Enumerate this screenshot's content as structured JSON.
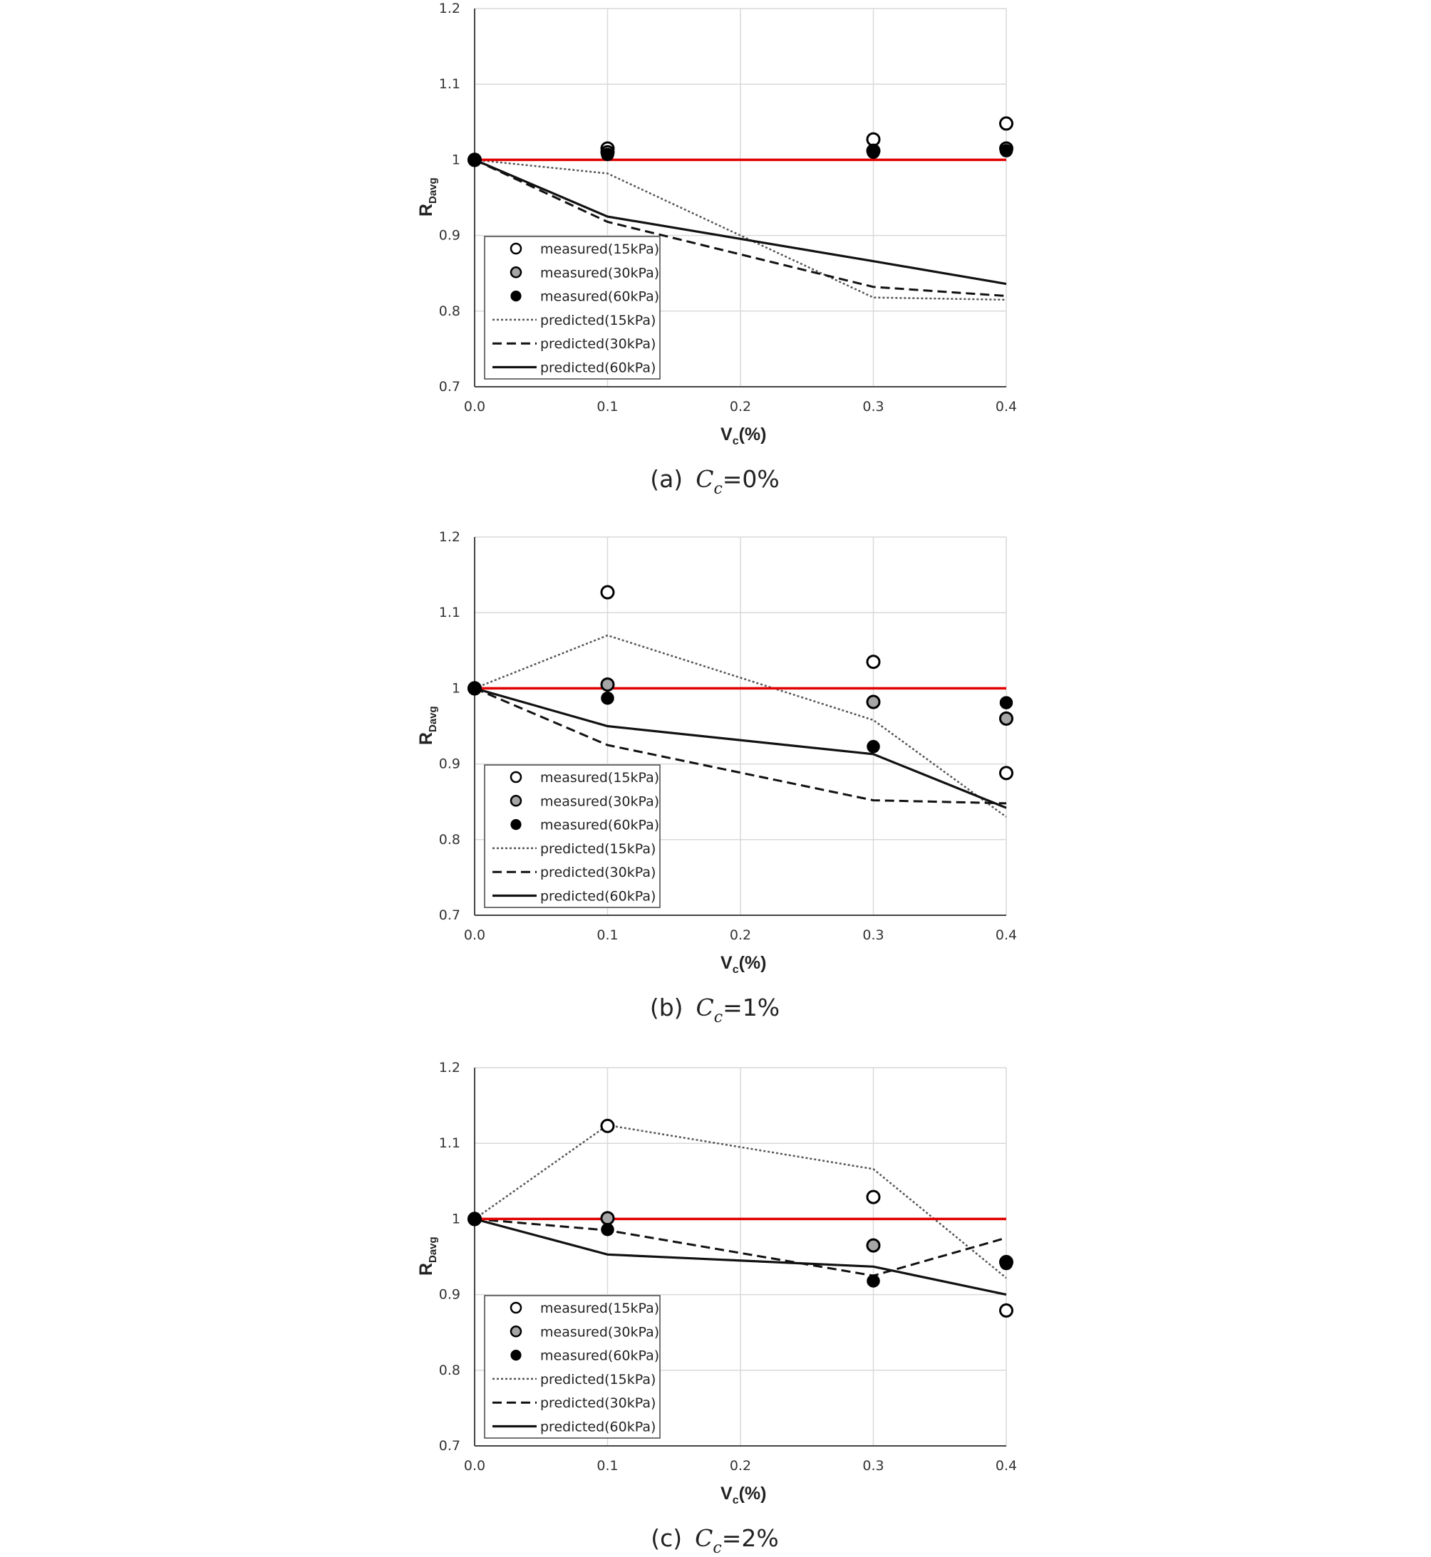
{
  "colors": {
    "reference_line": "#e00000",
    "measured_15_fill": "#ffffff",
    "measured_30_fill": "#a6a6a6",
    "measured_60_fill": "#000000",
    "predicted_15": "#555555",
    "predicted_30": "#111111",
    "predicted_60": "#111111",
    "grid": "#d9d9d9"
  },
  "legend_labels": [
    "measured(15kPa)",
    "measured(30kPa)",
    "measured(60kPa)",
    "predicted(15kPa)",
    "predicted(30kPa)",
    "predicted(60kPa)"
  ],
  "chart_data": [
    {
      "type": "line",
      "caption_prefix": "(a)",
      "caption_var": "C",
      "caption_sub": "c",
      "caption_suffix": "=0%",
      "xlabel_main": "V",
      "xlabel_sub": "c",
      "xlabel_suffix": "(%)",
      "ylabel_main": "R",
      "ylabel_sub": "Davg",
      "xlim": [
        0,
        0.4
      ],
      "ylim": [
        0.7,
        1.2
      ],
      "xticks": [
        "0.0",
        "0.1",
        "0.2",
        "0.3",
        "0.4"
      ],
      "yticks": [
        "0.7",
        "0.8",
        "0.9",
        "1",
        "1.1",
        "1.2"
      ],
      "grid": true,
      "legend_position": "bottom-left",
      "reference_value": 1,
      "x": [
        0,
        0.1,
        0.3,
        0.4
      ],
      "series": [
        {
          "name": "measured(15kPa)",
          "kind": "measured",
          "values": [
            1.0,
            1.015,
            1.027,
            1.048
          ]
        },
        {
          "name": "measured(30kPa)",
          "kind": "measured",
          "values": [
            1.0,
            1.01,
            1.012,
            1.015
          ]
        },
        {
          "name": "measured(60kPa)",
          "kind": "measured",
          "values": [
            1.0,
            1.007,
            1.01,
            1.012
          ]
        },
        {
          "name": "predicted(15kPa)",
          "kind": "predicted",
          "values": [
            1.0,
            0.982,
            0.818,
            0.815
          ]
        },
        {
          "name": "predicted(30kPa)",
          "kind": "predicted",
          "values": [
            1.0,
            0.918,
            0.832,
            0.82
          ]
        },
        {
          "name": "predicted(60kPa)",
          "kind": "predicted",
          "values": [
            1.0,
            0.925,
            0.866,
            0.836
          ]
        }
      ]
    },
    {
      "type": "line",
      "caption_prefix": "(b)",
      "caption_var": "C",
      "caption_sub": "c",
      "caption_suffix": "=1%",
      "xlabel_main": "V",
      "xlabel_sub": "c",
      "xlabel_suffix": "(%)",
      "ylabel_main": "R",
      "ylabel_sub": "Davg",
      "xlim": [
        0,
        0.4
      ],
      "ylim": [
        0.7,
        1.2
      ],
      "xticks": [
        "0.0",
        "0.1",
        "0.2",
        "0.3",
        "0.4"
      ],
      "yticks": [
        "0.7",
        "0.8",
        "0.9",
        "1",
        "1.1",
        "1.2"
      ],
      "grid": true,
      "legend_position": "bottom-left",
      "reference_value": 1,
      "x": [
        0,
        0.1,
        0.3,
        0.4
      ],
      "series": [
        {
          "name": "measured(15kPa)",
          "kind": "measured",
          "values": [
            1.0,
            1.127,
            1.035,
            0.888
          ]
        },
        {
          "name": "measured(30kPa)",
          "kind": "measured",
          "values": [
            1.0,
            1.005,
            0.982,
            0.96
          ]
        },
        {
          "name": "measured(60kPa)",
          "kind": "measured",
          "values": [
            1.0,
            0.987,
            0.923,
            0.981
          ]
        },
        {
          "name": "predicted(15kPa)",
          "kind": "predicted",
          "values": [
            1.0,
            1.07,
            0.958,
            0.83
          ]
        },
        {
          "name": "predicted(30kPa)",
          "kind": "predicted",
          "values": [
            1.0,
            0.925,
            0.852,
            0.848
          ]
        },
        {
          "name": "predicted(60kPa)",
          "kind": "predicted",
          "values": [
            1.0,
            0.95,
            0.913,
            0.842
          ]
        }
      ]
    },
    {
      "type": "line",
      "caption_prefix": "(c)",
      "caption_var": "C",
      "caption_sub": "c",
      "caption_suffix": "=2%",
      "xlabel_main": "V",
      "xlabel_sub": "c",
      "xlabel_suffix": "(%)",
      "ylabel_main": "R",
      "ylabel_sub": "Davg",
      "xlim": [
        0,
        0.4
      ],
      "ylim": [
        0.7,
        1.2
      ],
      "xticks": [
        "0.0",
        "0.1",
        "0.2",
        "0.3",
        "0.4"
      ],
      "yticks": [
        "0.7",
        "0.8",
        "0.9",
        "1",
        "1.1",
        "1.2"
      ],
      "grid": true,
      "legend_position": "bottom-left",
      "reference_value": 1,
      "x": [
        0,
        0.1,
        0.3,
        0.4
      ],
      "series": [
        {
          "name": "measured(15kPa)",
          "kind": "measured",
          "values": [
            1.0,
            1.123,
            1.029,
            0.879
          ]
        },
        {
          "name": "measured(30kPa)",
          "kind": "measured",
          "values": [
            1.0,
            1.001,
            0.965,
            0.943
          ]
        },
        {
          "name": "measured(60kPa)",
          "kind": "measured",
          "values": [
            1.0,
            0.986,
            0.918,
            0.941
          ]
        },
        {
          "name": "predicted(15kPa)",
          "kind": "predicted",
          "values": [
            1.0,
            1.124,
            1.066,
            0.922
          ]
        },
        {
          "name": "predicted(30kPa)",
          "kind": "predicted",
          "values": [
            1.0,
            0.985,
            0.925,
            0.975
          ]
        },
        {
          "name": "predicted(60kPa)",
          "kind": "predicted",
          "values": [
            1.0,
            0.953,
            0.937,
            0.9
          ]
        }
      ]
    }
  ]
}
